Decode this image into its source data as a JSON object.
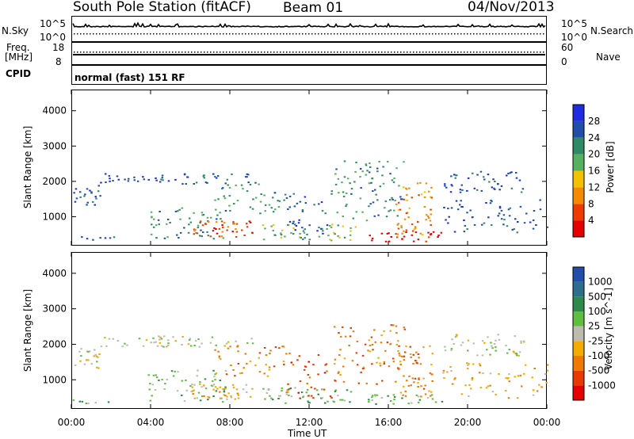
{
  "header": {
    "station": "South Pole Station (fitACF)",
    "beam": "Beam 01",
    "date": "04/Nov/2013"
  },
  "noise_panel": {
    "left_label": "N.Sky",
    "right_label": "N.Search",
    "left_ticks": [
      "10^5",
      "10^0"
    ],
    "right_ticks": [
      "10^5",
      "10^0"
    ]
  },
  "freq_panel": {
    "left_label_1": "Freq.",
    "left_label_2": "[MHz]",
    "right_label": "Nave",
    "left_ticks": [
      "18",
      "8"
    ],
    "right_ticks": [
      "60",
      "0"
    ]
  },
  "cpid_panel": {
    "label": "CPID",
    "text": "normal (fast) 151 RF"
  },
  "x_axis": {
    "label": "Time UT",
    "ticks": [
      "00:00",
      "04:00",
      "08:00",
      "12:00",
      "16:00",
      "20:00",
      "00:00"
    ]
  },
  "colors": {
    "power_scale": [
      "#1f2be0",
      "#214ea8",
      "#2e8a64",
      "#55b060",
      "#f2c200",
      "#f58a00",
      "#ee3c00",
      "#e60000"
    ],
    "velocity_scale": [
      "#214ea8",
      "#2d6e8c",
      "#2e8a4a",
      "#5fbd3f",
      "#bcbcae",
      "#f5aa00",
      "#f07a00",
      "#e83a00",
      "#e60000"
    ]
  },
  "chart_data": [
    {
      "type": "heatmap",
      "ylabel": "Slant Range [km]",
      "ylim": [
        180,
        4600
      ],
      "yticks": [
        "1000",
        "2000",
        "3000",
        "4000"
      ],
      "colorbar": {
        "label": "Power [dB]",
        "ticks": [
          "28",
          "24",
          "20",
          "16",
          "12",
          "8",
          "4"
        ]
      }
    },
    {
      "type": "heatmap",
      "ylabel": "Slant Range [km]",
      "ylim": [
        180,
        4600
      ],
      "yticks": [
        "1000",
        "2000",
        "3000",
        "4000"
      ],
      "colorbar": {
        "label": "Velocity [m s^-1]",
        "ticks": [
          "1000",
          "500",
          "100",
          "25",
          "-25",
          "-100",
          "-500",
          "-1000"
        ]
      }
    }
  ]
}
